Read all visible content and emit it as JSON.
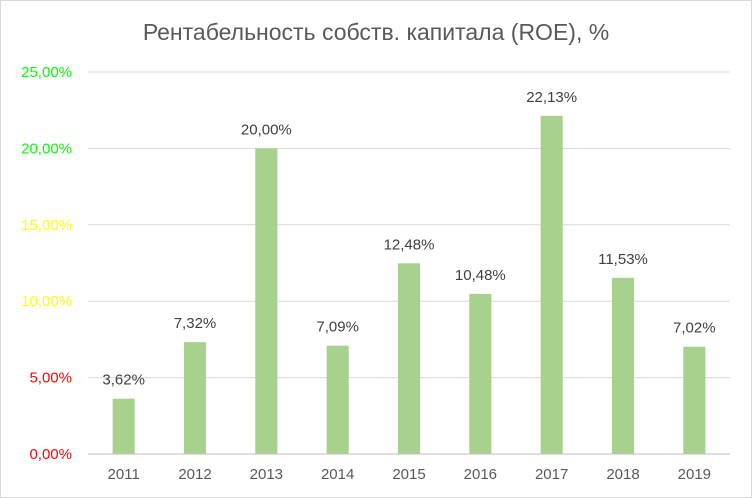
{
  "chart_data": {
    "type": "bar",
    "title": "Рентабельность собств. капитала (ROE), %",
    "categories": [
      "2011",
      "2012",
      "2013",
      "2014",
      "2015",
      "2016",
      "2017",
      "2018",
      "2019"
    ],
    "values": [
      3.62,
      7.32,
      20.0,
      7.09,
      12.48,
      10.48,
      22.13,
      11.53,
      7.02
    ],
    "data_labels": [
      "3,62%",
      "7,32%",
      "20,00%",
      "7,09%",
      "12,48%",
      "10,48%",
      "22,13%",
      "11,53%",
      "7,02%"
    ],
    "ylim": [
      0,
      25
    ],
    "y_ticks": [
      {
        "value": 0,
        "label": "0,00%",
        "color": "#ff0000"
      },
      {
        "value": 5,
        "label": "5,00%",
        "color": "#ff0000"
      },
      {
        "value": 10,
        "label": "10,00%",
        "color": "#ffff00"
      },
      {
        "value": 15,
        "label": "15,00%",
        "color": "#ffff00"
      },
      {
        "value": 20,
        "label": "20,00%",
        "color": "#00ff00"
      },
      {
        "value": 25,
        "label": "25,00%",
        "color": "#00ff00"
      }
    ],
    "bar_color": "#a9d18e",
    "grid": true,
    "legend": "none"
  }
}
